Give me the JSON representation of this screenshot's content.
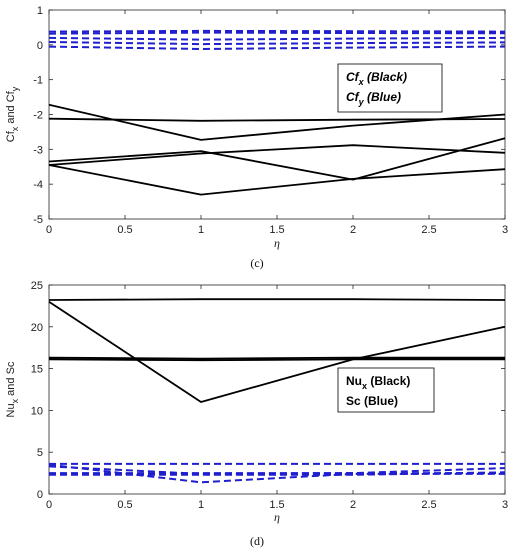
{
  "chart_data": [
    {
      "type": "line",
      "panel": "(c)",
      "caption": "(c)",
      "xlabel": "η",
      "ylabel": "Cfₓ and Cfᵧ",
      "ylabel_parts": {
        "a": "Cf",
        "a_sub": "x",
        "mid": " and ",
        "b": "Cf",
        "b_sub": "y"
      },
      "xlim": [
        0,
        3
      ],
      "ylim": [
        -5,
        1
      ],
      "xticks": [
        0,
        0.5,
        1,
        1.5,
        2,
        2.5,
        3
      ],
      "xtick_labels": [
        "0",
        "0.5",
        "1",
        "1.5",
        "2",
        "2.5",
        "3"
      ],
      "yticks": [
        -5,
        -4,
        -3,
        -2,
        -1,
        0,
        1
      ],
      "ytick_labels": [
        "-5",
        "-4",
        "-3",
        "-2",
        "-1",
        "0",
        "1"
      ],
      "legend": [
        {
          "label": "Cf",
          "sub": "x",
          "suffix": " (Black)",
          "italic": true
        },
        {
          "label": "Cf",
          "sub": "y",
          "suffix": " (Blue)",
          "italic": true
        }
      ],
      "legend_position": "right",
      "series": [
        {
          "group": "black",
          "x": [
            0,
            1,
            2,
            3
          ],
          "values": [
            -1.72,
            -2.73,
            -2.32,
            -2.0
          ]
        },
        {
          "group": "black",
          "x": [
            0,
            1,
            2,
            3
          ],
          "values": [
            -2.12,
            -2.18,
            -2.15,
            -2.13
          ]
        },
        {
          "group": "black",
          "x": [
            0,
            1,
            2,
            3
          ],
          "values": [
            -3.45,
            -3.12,
            -2.88,
            -3.1
          ]
        },
        {
          "group": "black",
          "x": [
            0,
            1,
            2,
            3
          ],
          "values": [
            -3.35,
            -3.05,
            -3.87,
            -2.68
          ]
        },
        {
          "group": "black",
          "x": [
            0,
            1,
            2,
            3
          ],
          "values": [
            -3.45,
            -4.3,
            -3.85,
            -3.57
          ]
        },
        {
          "group": "blue",
          "x": [
            0,
            1,
            2,
            3
          ],
          "values": [
            0.38,
            0.4,
            0.39,
            0.38
          ]
        },
        {
          "group": "blue",
          "x": [
            0,
            1,
            2,
            3
          ],
          "values": [
            0.32,
            0.35,
            0.34,
            0.33
          ]
        },
        {
          "group": "blue",
          "x": [
            0,
            1,
            2,
            3
          ],
          "values": [
            0.2,
            0.15,
            0.18,
            0.2
          ]
        },
        {
          "group": "blue",
          "x": [
            0,
            1,
            2,
            3
          ],
          "values": [
            0.08,
            0.02,
            0.05,
            0.07
          ]
        },
        {
          "group": "blue",
          "x": [
            0,
            1,
            2,
            3
          ],
          "values": [
            -0.05,
            -0.12,
            -0.08,
            -0.05
          ]
        }
      ],
      "colors": {
        "black": "#000000",
        "blue": "#1f1fcf"
      }
    },
    {
      "type": "line",
      "panel": "(d)",
      "caption": "(d)",
      "xlabel": "η",
      "ylabel": "Nuₓ and Sc",
      "ylabel_parts": {
        "a": "Nu",
        "a_sub": "x",
        "mid": " and Sc",
        "b": "",
        "b_sub": ""
      },
      "xlim": [
        0,
        3
      ],
      "ylim": [
        0,
        25
      ],
      "xticks": [
        0,
        0.5,
        1,
        1.5,
        2,
        2.5,
        3
      ],
      "xtick_labels": [
        "0",
        "0.5",
        "1",
        "1.5",
        "2",
        "2.5",
        "3"
      ],
      "yticks": [
        0,
        5,
        10,
        15,
        20,
        25
      ],
      "ytick_labels": [
        "0",
        "5",
        "10",
        "15",
        "20",
        "25"
      ],
      "legend": [
        {
          "label": "Nu",
          "sub": "x",
          "suffix": " (Black)",
          "italic": false
        },
        {
          "label": "Sc",
          "sub": "",
          "suffix": " (Blue)",
          "italic": false
        }
      ],
      "legend_position": "right",
      "series": [
        {
          "group": "black",
          "x": [
            0,
            1,
            2,
            3
          ],
          "values": [
            23.2,
            23.3,
            23.3,
            23.2
          ]
        },
        {
          "group": "black",
          "x": [
            0,
            1,
            2,
            3
          ],
          "values": [
            23.0,
            11.0,
            16.1,
            20.0
          ]
        },
        {
          "group": "black",
          "x": [
            0,
            1,
            2,
            3
          ],
          "values": [
            16.3,
            16.2,
            16.3,
            16.3
          ]
        },
        {
          "group": "black",
          "x": [
            0,
            1,
            2,
            3
          ],
          "values": [
            16.1,
            16.0,
            16.1,
            16.1
          ]
        },
        {
          "group": "blue",
          "x": [
            0,
            1,
            2,
            3
          ],
          "values": [
            3.6,
            3.6,
            3.6,
            3.6
          ]
        },
        {
          "group": "blue",
          "x": [
            0,
            1,
            2,
            3
          ],
          "values": [
            3.3,
            2.4,
            2.5,
            3.1
          ]
        },
        {
          "group": "blue",
          "x": [
            0,
            1,
            2,
            3
          ],
          "values": [
            2.5,
            2.5,
            2.5,
            2.5
          ]
        },
        {
          "group": "blue",
          "x": [
            0,
            1,
            2,
            3
          ],
          "values": [
            2.3,
            2.3,
            2.3,
            2.6
          ]
        },
        {
          "group": "blue",
          "x": [
            0,
            1,
            2,
            3
          ],
          "values": [
            3.5,
            1.4,
            2.4,
            2.4
          ]
        }
      ],
      "colors": {
        "black": "#000000",
        "blue": "#1f1fcf"
      }
    }
  ]
}
